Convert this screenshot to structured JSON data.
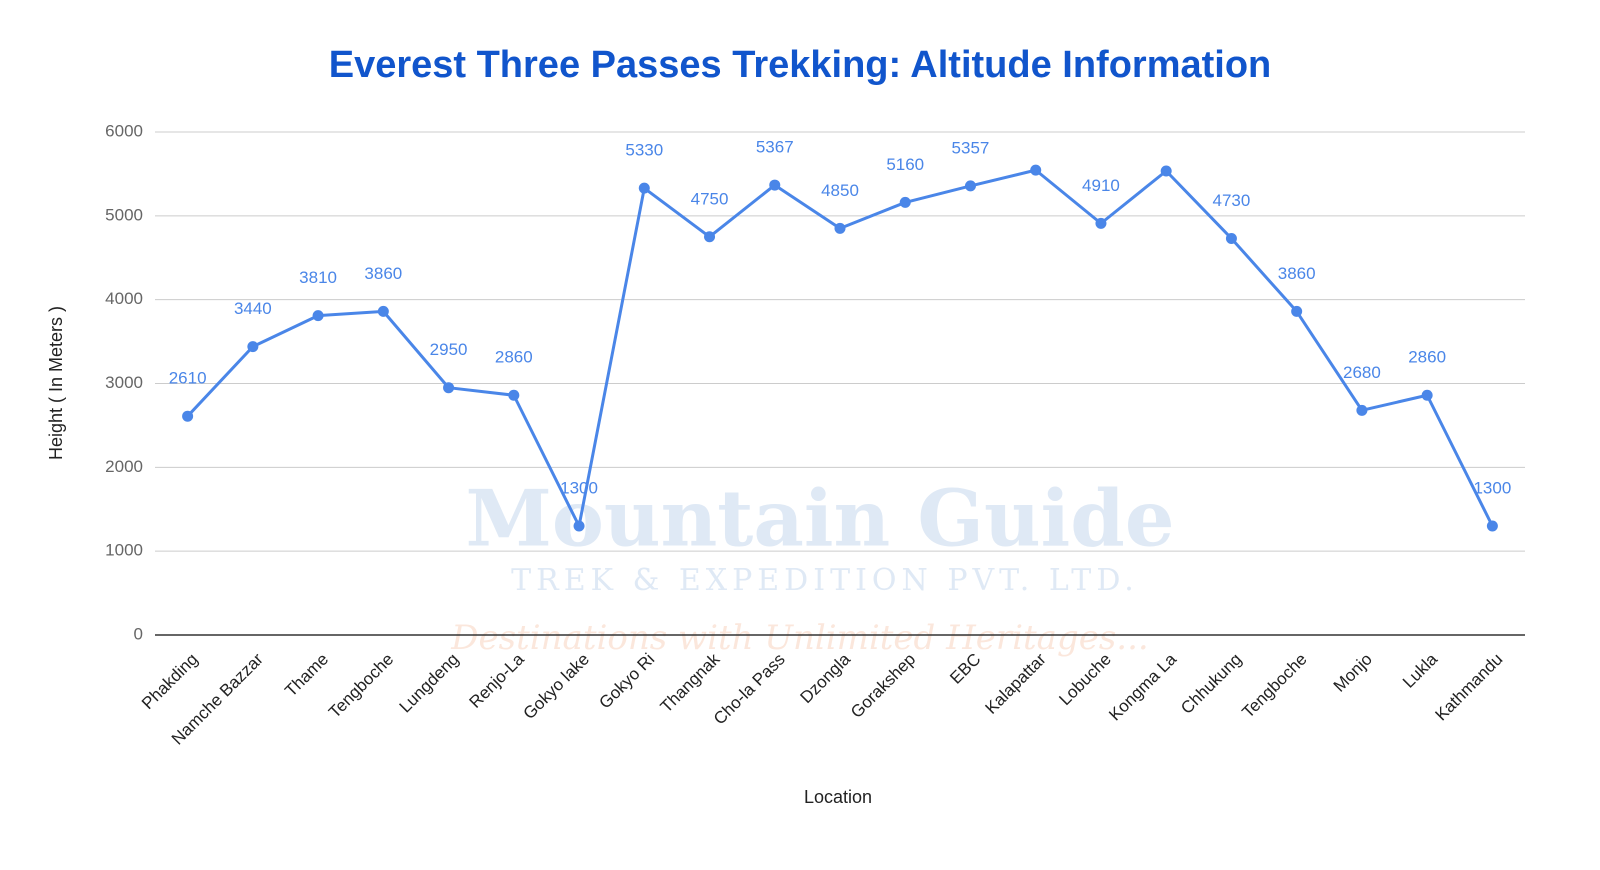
{
  "chart_data": {
    "type": "line",
    "title": "Everest Three Passes Trekking: Altitude Information",
    "x_label": "Location",
    "y_label": "Height ( In Meters )",
    "watermark": [
      "Mountain Guide",
      "TREK & EXPEDITION PVT. LTD.",
      "Destinations with Unlimited Heritages..."
    ],
    "categories": [
      "Phakding",
      "Namche Bazzar",
      "Thame",
      "Tengboche",
      "Lungdeng",
      "Renjo-La",
      "Gokyo lake",
      "Gokyo Ri",
      "Thangnak",
      "Cho-la Pass",
      "Dzongla",
      "Gorakshep",
      "EBC",
      "Kalapattar",
      "Lobuche",
      "Kongma La",
      "Chhukung",
      "Tengboche",
      "Monjo",
      "Lukla",
      "Kathmandu"
    ],
    "values": [
      2610,
      3440,
      3810,
      3860,
      2950,
      2860,
      1300,
      5330,
      4750,
      5367,
      4850,
      5160,
      5357,
      5545,
      4910,
      5535,
      4730,
      3860,
      2680,
      2860,
      1300
    ],
    "value_labels": [
      "2610",
      "3440",
      "3810",
      "3860",
      "2950",
      "2860",
      "1300",
      "5330",
      "4750",
      "5367",
      "4850",
      "5160",
      "5357",
      null,
      "4910",
      null,
      "4730",
      "3860",
      "2680",
      "2860",
      "1300"
    ],
    "color": "#4a86e8",
    "ylim": [
      0,
      6000
    ],
    "yticks": [
      0,
      1000,
      2000,
      3000,
      4000,
      5000,
      6000
    ],
    "grid": true
  }
}
